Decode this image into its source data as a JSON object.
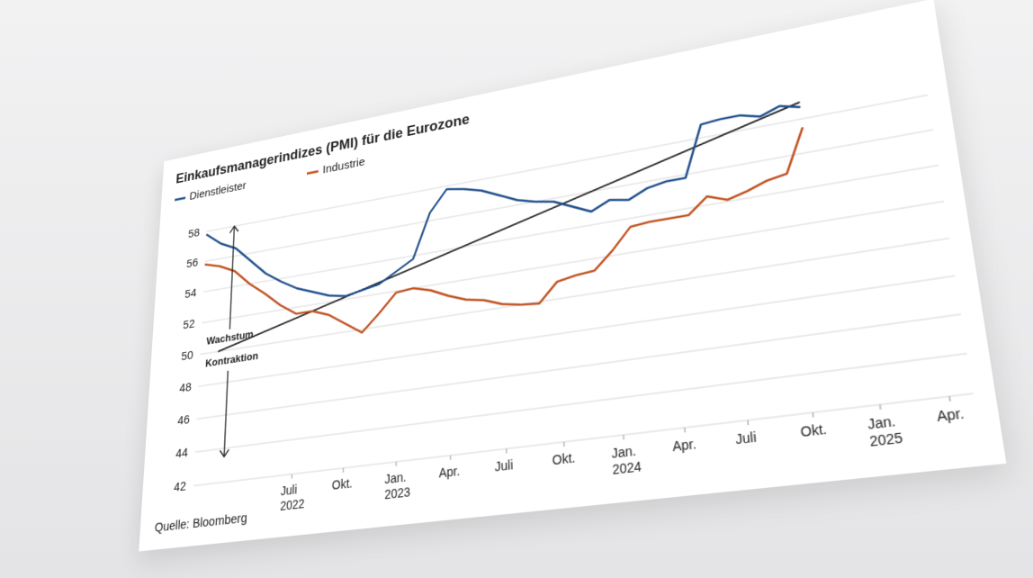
{
  "chart_data": {
    "type": "line",
    "title": "Einkaufsmanagerindizes (PMI) für die Eurozone",
    "x": [
      0,
      1,
      2,
      3,
      4,
      5,
      6,
      7,
      8,
      9,
      10,
      11,
      12,
      13,
      14,
      15,
      16,
      17,
      18,
      19,
      20,
      21,
      22,
      23,
      24,
      25,
      26,
      27,
      28,
      29,
      30,
      31,
      32,
      33,
      34
    ],
    "series": [
      {
        "name": "Dienstleister",
        "color": "#1f4e8c",
        "values": [
          57.8,
          57.0,
          56.5,
          55.5,
          54.5,
          53.8,
          53.2,
          52.8,
          52.4,
          52.2,
          52.4,
          52.6,
          53.2,
          53.8,
          56.5,
          57.8,
          57.6,
          57.3,
          56.8,
          56.3,
          56.0,
          55.8,
          55.3,
          54.8,
          55.3,
          55.1,
          55.6,
          55.8,
          55.8,
          58.8,
          58.9,
          58.9,
          58.6,
          59.0,
          58.7
        ]
      },
      {
        "name": "Industrie",
        "color": "#c0501f",
        "values": [
          55.8,
          55.5,
          55.0,
          54.0,
          53.2,
          52.3,
          51.6,
          51.6,
          51.2,
          50.5,
          49.8,
          50.8,
          51.9,
          52.0,
          51.7,
          51.2,
          50.8,
          50.6,
          50.2,
          50.0,
          49.9,
          51.0,
          51.2,
          51.3,
          52.3,
          53.5,
          53.6,
          53.6,
          53.6,
          54.5,
          54.1,
          54.4,
          54.8,
          55.0,
          57.5
        ]
      }
    ],
    "trend_line": {
      "color": "#222222",
      "start": 50,
      "end": 59
    },
    "xlim": [
      0,
      40
    ],
    "xticks": [
      {
        "value": 6,
        "label": "Juli\n2022"
      },
      {
        "value": 9,
        "label": "Okt."
      },
      {
        "value": 12,
        "label": "Jan.\n2023"
      },
      {
        "value": 15,
        "label": "Apr."
      },
      {
        "value": 18,
        "label": "Juli"
      },
      {
        "value": 21,
        "label": "Okt."
      },
      {
        "value": 24,
        "label": "Jan.\n2024"
      },
      {
        "value": 27,
        "label": "Apr."
      },
      {
        "value": 30,
        "label": "Juli"
      },
      {
        "value": 33,
        "label": "Okt."
      },
      {
        "value": 36,
        "label": "Jan.\n2025"
      },
      {
        "value": 39,
        "label": "Apr."
      }
    ],
    "ylim": [
      42,
      60
    ],
    "yticks": [
      42,
      44,
      46,
      48,
      50,
      52,
      54,
      56,
      58
    ],
    "grid": true,
    "annotations": [
      "Wachstum",
      "Kontraktion"
    ],
    "source": "Quelle: Bloomberg"
  }
}
